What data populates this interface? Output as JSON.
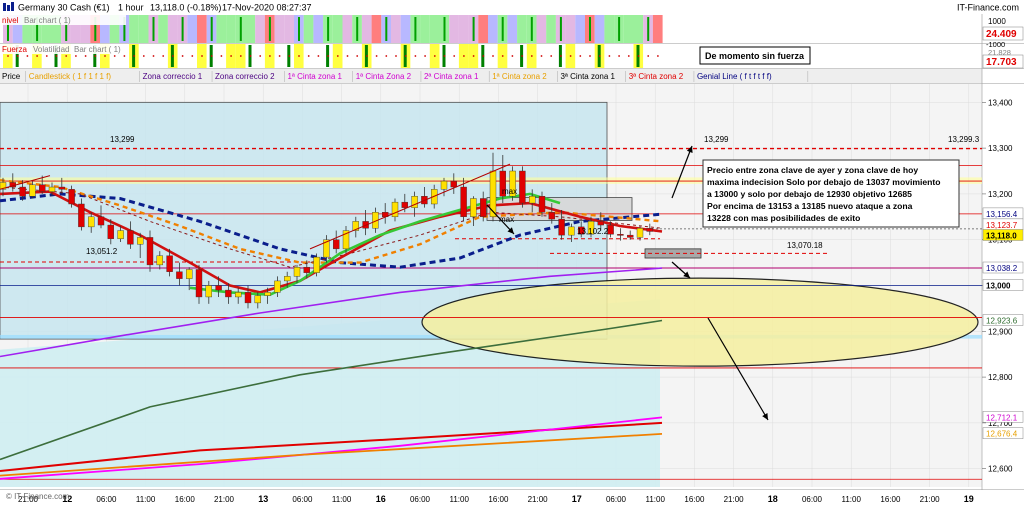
{
  "header": {
    "instrument": "Germany 30 Cash (€1)",
    "timeframe": "1 hour",
    "price_change": "13,118.0 (-0.18%)",
    "datetime": "17-Nov-2020 08:27:37",
    "brand": "IT-Finance.com"
  },
  "panel_nivel": {
    "label": "nivel",
    "sublabel": "Bar chart ( 1)",
    "scale_top": "1000",
    "scale_value": "24.409",
    "scale_bottom": "-1000",
    "value_color": "#e00000"
  },
  "panel_fuerza": {
    "label": "Fuerza",
    "sublabels": [
      "Volatilidad",
      "Bar chart ( 1)"
    ],
    "scale_top": "21.828",
    "scale_value": "17.703",
    "value_color": "#e00000",
    "note": "De momento sin fuerza"
  },
  "legend": [
    {
      "text": "Price",
      "color": "#000000"
    },
    {
      "text": "Candlestick ( 1 f 1 f 1 f)",
      "color": "#e8a000"
    },
    {
      "text": "Zona correccio 1",
      "color": "#4b0082"
    },
    {
      "text": "Zona correccio 2",
      "color": "#4b0082"
    },
    {
      "text": "1ª Cinta zona 1",
      "color": "#d000d0"
    },
    {
      "text": "1ª Cinta Zona 2",
      "color": "#d000d0"
    },
    {
      "text": "2ª Cinta zona 1",
      "color": "#d000d0"
    },
    {
      "text": "1ª Cinta zona 2",
      "color": "#e8a000"
    },
    {
      "text": "3ª Cinta zona 1",
      "color": "#000000"
    },
    {
      "text": "3ª Cinta zona 2",
      "color": "#e00000"
    },
    {
      "text": "Genial Line ( f t f t f f)",
      "color": "#000080"
    }
  ],
  "annotations": {
    "main_text": [
      "Precio entre zona clave de ayer y zona clave de hoy",
      "maxima indecision Solo por debajo de 13037 movimiento",
      "a 13000 y solo por debajo de 12930 objetivo 12685",
      "Por encima de 13153 a 13185 nuevo ataque a zona",
      "13228 con mas posibilidades de exito"
    ],
    "max_label": "max",
    "level_labels": [
      "13,299",
      "13,299",
      "13,299.3",
      "13,051.2",
      "13,102.2",
      "13,070.18"
    ]
  },
  "price_axis": {
    "ticks": [
      "13,400",
      "13,300",
      "13,200",
      "13,100",
      "13,000",
      "12,900",
      "12,800",
      "12,700",
      "12,600"
    ],
    "tags": [
      {
        "text": "13,156.4",
        "color": "#000080",
        "bg": "#ffffff"
      },
      {
        "text": "13,123.7",
        "color": "#e00000",
        "bg": "#ffffff"
      },
      {
        "text": "13,118.0",
        "color": "#000000",
        "bg": "#ffee00"
      },
      {
        "text": "13,038.2",
        "color": "#000080",
        "bg": "#ffffff"
      },
      {
        "text": "13,000",
        "color": "#000000",
        "bg": "#ffffff"
      },
      {
        "text": "12,923.6",
        "color": "#2e6b2e",
        "bg": "#ffffff"
      },
      {
        "text": "12,712.1",
        "color": "#d000d0",
        "bg": "#ffffff"
      },
      {
        "text": "12,676.4",
        "color": "#e8a000",
        "bg": "#ffffff"
      }
    ]
  },
  "time_axis": [
    "21:00",
    "12",
    "06:00",
    "11:00",
    "16:00",
    "21:00",
    "13",
    "06:00",
    "11:00",
    "16",
    "06:00",
    "11:00",
    "16:00",
    "21:00",
    "17",
    "06:00",
    "11:00",
    "16:00",
    "21:00",
    "18",
    "06:00",
    "11:00",
    "16:00",
    "21:00",
    "19"
  ],
  "watermark": "© IT-Finance.com",
  "colors": {
    "bull": "#ffe000",
    "bear": "#e00000",
    "fast_ma": "#d01010",
    "green_ma": "#36c836",
    "orange_ma": "#f08000",
    "navy_ma": "#0a1e8c",
    "purple_ma": "#a020f0",
    "olive_ma": "#3c6e3c",
    "magenta_ma": "#ff00ff",
    "red_ma": "#d00000",
    "zone_fill": "#c8e6f0",
    "level_line": "#e00000"
  },
  "chart_data": {
    "type": "candlestick",
    "symbol": "Germany 30 Cash (€1)",
    "timeframe": "1 hour",
    "ylim": [
      12560,
      13440
    ],
    "ytick_values": [
      13400,
      13300,
      13200,
      13100,
      13000,
      12900,
      12800,
      12700,
      12600
    ],
    "levels": [
      {
        "value": 13299,
        "label": "13,299"
      },
      {
        "value": 13228
      },
      {
        "value": 13156.4
      },
      {
        "value": 13102.2,
        "label": "13,102.2"
      },
      {
        "value": 13070.18,
        "label": "13,070.18"
      },
      {
        "value": 13051.2,
        "label": "13,051.2"
      },
      {
        "value": 13000
      },
      {
        "value": 12930
      },
      {
        "value": 12685
      }
    ],
    "candles": [
      {
        "o": 13210,
        "h": 13235,
        "l": 13195,
        "c": 13225
      },
      {
        "o": 13225,
        "h": 13245,
        "l": 13205,
        "c": 13215
      },
      {
        "o": 13215,
        "h": 13230,
        "l": 13185,
        "c": 13195
      },
      {
        "o": 13195,
        "h": 13228,
        "l": 13190,
        "c": 13220
      },
      {
        "o": 13220,
        "h": 13240,
        "l": 13200,
        "c": 13205
      },
      {
        "o": 13205,
        "h": 13225,
        "l": 13195,
        "c": 13215
      },
      {
        "o": 13215,
        "h": 13235,
        "l": 13200,
        "c": 13210
      },
      {
        "o": 13210,
        "h": 13218,
        "l": 13170,
        "c": 13178
      },
      {
        "o": 13178,
        "h": 13190,
        "l": 13120,
        "c": 13128
      },
      {
        "o": 13128,
        "h": 13160,
        "l": 13115,
        "c": 13150
      },
      {
        "o": 13150,
        "h": 13175,
        "l": 13125,
        "c": 13132
      },
      {
        "o": 13132,
        "h": 13145,
        "l": 13090,
        "c": 13102
      },
      {
        "o": 13102,
        "h": 13130,
        "l": 13095,
        "c": 13120
      },
      {
        "o": 13120,
        "h": 13140,
        "l": 13080,
        "c": 13090
      },
      {
        "o": 13090,
        "h": 13115,
        "l": 13060,
        "c": 13105
      },
      {
        "o": 13105,
        "h": 13120,
        "l": 13030,
        "c": 13045
      },
      {
        "o": 13045,
        "h": 13075,
        "l": 13035,
        "c": 13065
      },
      {
        "o": 13065,
        "h": 13080,
        "l": 13020,
        "c": 13030
      },
      {
        "o": 13030,
        "h": 13050,
        "l": 13000,
        "c": 13015
      },
      {
        "o": 13015,
        "h": 13040,
        "l": 12990,
        "c": 13035
      },
      {
        "o": 13035,
        "h": 13045,
        "l": 12960,
        "c": 12975
      },
      {
        "o": 12975,
        "h": 13010,
        "l": 12960,
        "c": 13000
      },
      {
        "o": 13000,
        "h": 13020,
        "l": 12975,
        "c": 12990
      },
      {
        "o": 12990,
        "h": 13005,
        "l": 12960,
        "c": 12975
      },
      {
        "o": 12975,
        "h": 12995,
        "l": 12960,
        "c": 12985
      },
      {
        "o": 12985,
        "h": 13000,
        "l": 12950,
        "c": 12962
      },
      {
        "o": 12962,
        "h": 12985,
        "l": 12950,
        "c": 12978
      },
      {
        "o": 12978,
        "h": 12995,
        "l": 12960,
        "c": 12985
      },
      {
        "o": 12985,
        "h": 13020,
        "l": 12975,
        "c": 13010
      },
      {
        "o": 13010,
        "h": 13030,
        "l": 12995,
        "c": 13020
      },
      {
        "o": 13020,
        "h": 13045,
        "l": 13005,
        "c": 13040
      },
      {
        "o": 13040,
        "h": 13055,
        "l": 13015,
        "c": 13028
      },
      {
        "o": 13028,
        "h": 13070,
        "l": 13020,
        "c": 13062
      },
      {
        "o": 13062,
        "h": 13110,
        "l": 13050,
        "c": 13100
      },
      {
        "o": 13100,
        "h": 13120,
        "l": 13070,
        "c": 13080
      },
      {
        "o": 13080,
        "h": 13130,
        "l": 13070,
        "c": 13120
      },
      {
        "o": 13120,
        "h": 13150,
        "l": 13105,
        "c": 13140
      },
      {
        "o": 13140,
        "h": 13165,
        "l": 13110,
        "c": 13125
      },
      {
        "o": 13125,
        "h": 13170,
        "l": 13115,
        "c": 13160
      },
      {
        "o": 13160,
        "h": 13180,
        "l": 13135,
        "c": 13150
      },
      {
        "o": 13150,
        "h": 13190,
        "l": 13140,
        "c": 13182
      },
      {
        "o": 13182,
        "h": 13200,
        "l": 13160,
        "c": 13170
      },
      {
        "o": 13170,
        "h": 13205,
        "l": 13150,
        "c": 13195
      },
      {
        "o": 13195,
        "h": 13215,
        "l": 13170,
        "c": 13178
      },
      {
        "o": 13178,
        "h": 13220,
        "l": 13168,
        "c": 13210
      },
      {
        "o": 13210,
        "h": 13235,
        "l": 13195,
        "c": 13228
      },
      {
        "o": 13228,
        "h": 13245,
        "l": 13200,
        "c": 13215
      },
      {
        "o": 13215,
        "h": 13235,
        "l": 13140,
        "c": 13150
      },
      {
        "o": 13150,
        "h": 13195,
        "l": 13130,
        "c": 13190
      },
      {
        "o": 13190,
        "h": 13205,
        "l": 13140,
        "c": 13150
      },
      {
        "o": 13150,
        "h": 13290,
        "l": 13140,
        "c": 13250
      },
      {
        "o": 13250,
        "h": 13285,
        "l": 13180,
        "c": 13195
      },
      {
        "o": 13195,
        "h": 13260,
        "l": 13185,
        "c": 13250
      },
      {
        "o": 13250,
        "h": 13260,
        "l": 13170,
        "c": 13180
      },
      {
        "o": 13180,
        "h": 13210,
        "l": 13160,
        "c": 13195
      },
      {
        "o": 13195,
        "h": 13205,
        "l": 13150,
        "c": 13160
      },
      {
        "o": 13160,
        "h": 13180,
        "l": 13135,
        "c": 13145
      },
      {
        "o": 13145,
        "h": 13165,
        "l": 13100,
        "c": 13110
      },
      {
        "o": 13110,
        "h": 13135,
        "l": 13095,
        "c": 13128
      },
      {
        "o": 13128,
        "h": 13140,
        "l": 13105,
        "c": 13112
      },
      {
        "o": 13112,
        "h": 13150,
        "l": 13105,
        "c": 13140
      },
      {
        "o": 13140,
        "h": 13160,
        "l": 13120,
        "c": 13132
      },
      {
        "o": 13132,
        "h": 13140,
        "l": 13105,
        "c": 13112
      },
      {
        "o": 13112,
        "h": 13125,
        "l": 13098,
        "c": 13110
      },
      {
        "o": 13110,
        "h": 13120,
        "l": 13100,
        "c": 13105
      },
      {
        "o": 13105,
        "h": 13130,
        "l": 13098,
        "c": 13125
      },
      {
        "o": 13125,
        "h": 13135,
        "l": 13110,
        "c": 13118
      }
    ]
  }
}
